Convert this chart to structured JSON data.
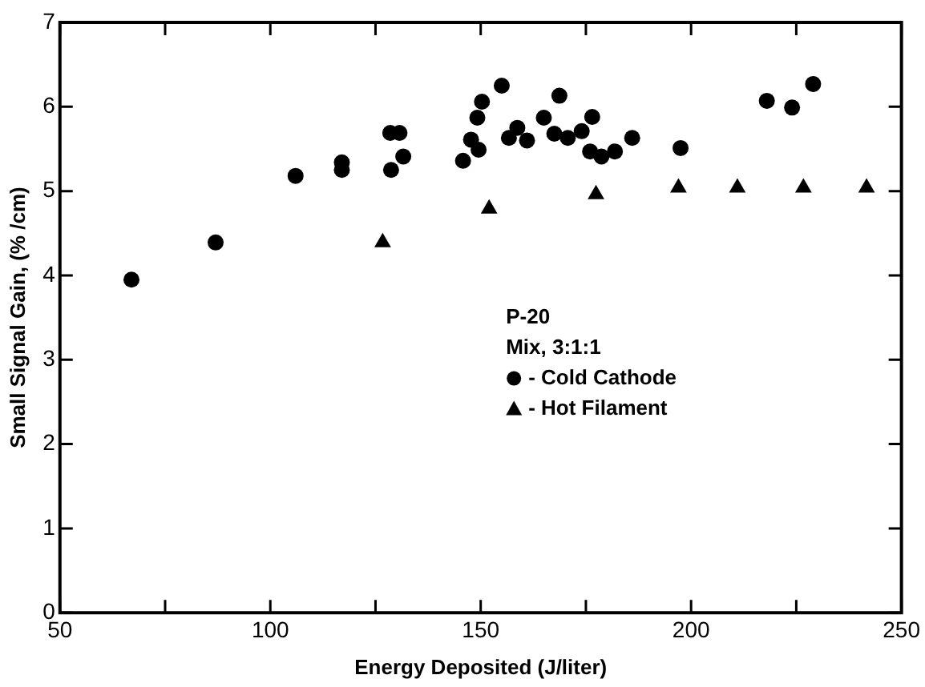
{
  "chart_data": {
    "type": "scatter",
    "xlabel": "Energy Deposited (J/liter)",
    "ylabel": "Small Signal Gain, (% /cm)",
    "xlim": [
      50,
      250
    ],
    "xticks": [
      50,
      {
        "value": 75,
        "label": null
      },
      100,
      {
        "value": 125,
        "label": null
      },
      150,
      {
        "value": 175,
        "label": null
      },
      200,
      {
        "value": 225,
        "label": null
      },
      250
    ],
    "ylim": [
      0,
      7
    ],
    "yticks": [
      0,
      1,
      2,
      3,
      4,
      5,
      6,
      7
    ],
    "grid": false,
    "legend": "center right",
    "legend_title": "P-20",
    "annotations": [
      "Mix, 3:1:1"
    ],
    "series": [
      {
        "name": "- Cold Cathode",
        "color": "#000000",
        "marker": "circle",
        "x": [
          67,
          87,
          106,
          117,
          117,
          128.7,
          128.5,
          130.7,
          131.6,
          145.8,
          147.7,
          149.5,
          149.2,
          150.3,
          155,
          156.7,
          158.7,
          161,
          165,
          168.7,
          167.5,
          170.7,
          174,
          176.5,
          176,
          178.7,
          181.9,
          186,
          197.5,
          218,
          224,
          229
        ],
        "values": [
          3.95,
          4.39,
          5.18,
          5.34,
          5.25,
          5.25,
          5.69,
          5.69,
          5.41,
          5.36,
          5.61,
          5.49,
          5.87,
          6.06,
          6.25,
          5.63,
          5.75,
          5.6,
          5.87,
          6.13,
          5.68,
          5.63,
          5.71,
          5.88,
          5.47,
          5.41,
          5.47,
          5.63,
          5.51,
          6.07,
          5.99,
          6.27
        ]
      },
      {
        "name": "- Hot Filament",
        "color": "#000000",
        "marker": "triangle",
        "x": [
          126.7,
          152,
          177.4,
          197,
          211,
          226.7,
          241.7
        ],
        "values": [
          4.39,
          4.79,
          4.96,
          5.04,
          5.04,
          5.04,
          5.04
        ]
      }
    ]
  }
}
